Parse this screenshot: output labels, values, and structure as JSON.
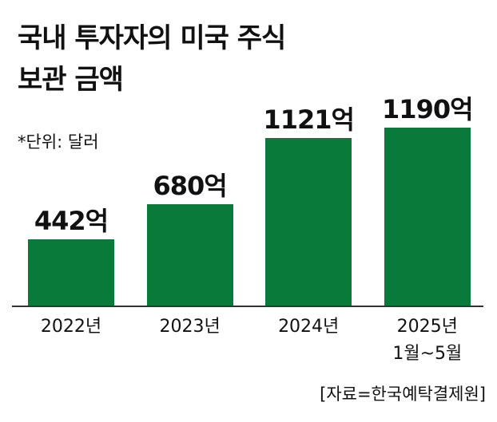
{
  "chart_data": {
    "type": "bar",
    "title": "국내 투자자의 미국 주식\n보관 금액",
    "subtitle": "*단위: 달러",
    "categories": [
      "2022년",
      "2023년",
      "2024년",
      "2025년\n1월~5월"
    ],
    "values": [
      442,
      680,
      1121,
      1190
    ],
    "value_labels": [
      "442억",
      "680억",
      "1121억",
      "1190억"
    ],
    "color": "#0a7a3b",
    "source": "[자료=한국예탁결제원]"
  }
}
